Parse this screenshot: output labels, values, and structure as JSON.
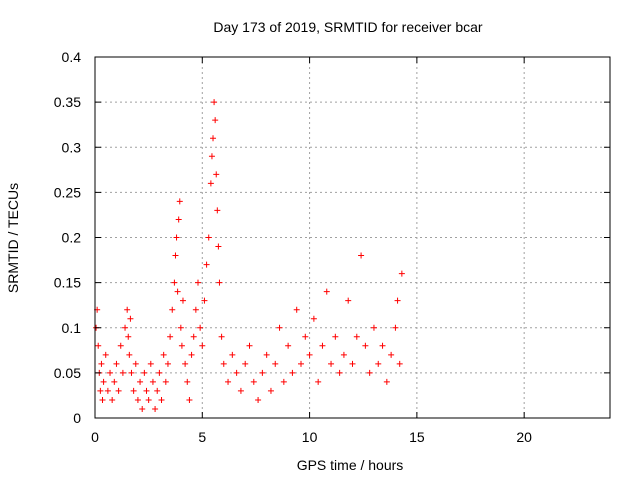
{
  "chart_data": {
    "type": "scatter",
    "title": "Day 173 of 2019, SRMTID for receiver bcar",
    "xlabel": "GPS time / hours",
    "ylabel": "SRMTID / TECUs",
    "xlim": [
      0,
      24
    ],
    "ylim": [
      0,
      0.4
    ],
    "x_ticks": [
      "0",
      "5",
      "10",
      "15",
      "20"
    ],
    "y_ticks": [
      "0",
      "0.05",
      "0.1",
      "0.15",
      "0.2",
      "0.25",
      "0.3",
      "0.35",
      "0.4"
    ],
    "grid": true,
    "marker": "plus",
    "series": [
      {
        "name": "SRMTID",
        "color": "#ff0000",
        "x": [
          0.05,
          0.1,
          0.15,
          0.2,
          0.25,
          0.3,
          0.35,
          0.4,
          0.5,
          0.6,
          0.7,
          0.8,
          0.9,
          1.0,
          1.1,
          1.2,
          1.3,
          1.4,
          1.5,
          1.55,
          1.6,
          1.65,
          1.7,
          1.8,
          1.9,
          2.0,
          2.1,
          2.2,
          2.3,
          2.4,
          2.5,
          2.6,
          2.7,
          2.8,
          2.9,
          3.0,
          3.1,
          3.2,
          3.3,
          3.4,
          3.5,
          3.6,
          3.7,
          3.75,
          3.8,
          3.85,
          3.9,
          3.95,
          4.0,
          4.05,
          4.1,
          4.2,
          4.3,
          4.4,
          4.5,
          4.6,
          4.7,
          4.8,
          4.9,
          5.0,
          5.1,
          5.2,
          5.3,
          5.4,
          5.45,
          5.5,
          5.55,
          5.6,
          5.65,
          5.7,
          5.75,
          5.8,
          5.9,
          6.0,
          6.2,
          6.4,
          6.6,
          6.8,
          7.0,
          7.2,
          7.4,
          7.6,
          7.8,
          8.0,
          8.2,
          8.4,
          8.6,
          8.8,
          9.0,
          9.2,
          9.4,
          9.6,
          9.8,
          10.0,
          10.2,
          10.4,
          10.6,
          10.8,
          11.0,
          11.2,
          11.4,
          11.6,
          11.8,
          12.0,
          12.2,
          12.4,
          12.6,
          12.8,
          13.0,
          13.2,
          13.4,
          13.6,
          13.8,
          14.0,
          14.1,
          14.2,
          14.3
        ],
        "y": [
          0.1,
          0.12,
          0.08,
          0.05,
          0.03,
          0.06,
          0.02,
          0.04,
          0.07,
          0.03,
          0.05,
          0.02,
          0.04,
          0.06,
          0.03,
          0.08,
          0.05,
          0.1,
          0.12,
          0.09,
          0.07,
          0.11,
          0.05,
          0.03,
          0.06,
          0.02,
          0.04,
          0.01,
          0.05,
          0.03,
          0.02,
          0.06,
          0.04,
          0.01,
          0.03,
          0.05,
          0.02,
          0.07,
          0.04,
          0.06,
          0.09,
          0.12,
          0.15,
          0.18,
          0.2,
          0.14,
          0.22,
          0.24,
          0.1,
          0.08,
          0.13,
          0.06,
          0.04,
          0.02,
          0.07,
          0.09,
          0.12,
          0.15,
          0.1,
          0.08,
          0.13,
          0.17,
          0.2,
          0.26,
          0.29,
          0.31,
          0.35,
          0.33,
          0.27,
          0.23,
          0.19,
          0.15,
          0.09,
          0.06,
          0.04,
          0.07,
          0.05,
          0.03,
          0.06,
          0.08,
          0.04,
          0.02,
          0.05,
          0.07,
          0.03,
          0.06,
          0.1,
          0.04,
          0.08,
          0.05,
          0.12,
          0.06,
          0.09,
          0.07,
          0.11,
          0.04,
          0.08,
          0.14,
          0.06,
          0.09,
          0.05,
          0.07,
          0.13,
          0.06,
          0.09,
          0.18,
          0.08,
          0.05,
          0.1,
          0.06,
          0.08,
          0.04,
          0.07,
          0.1,
          0.13,
          0.06,
          0.16
        ]
      }
    ]
  }
}
